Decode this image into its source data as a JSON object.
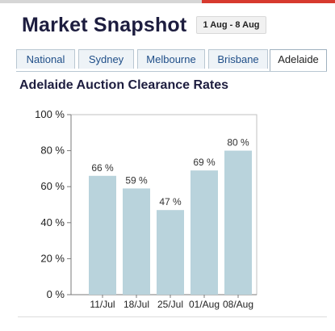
{
  "header": {
    "title": "Market Snapshot",
    "date_range": "1 Aug - 8 Aug"
  },
  "tabs": [
    {
      "label": "National",
      "active": false
    },
    {
      "label": "Sydney",
      "active": false
    },
    {
      "label": "Melbourne",
      "active": false
    },
    {
      "label": "Brisbane",
      "active": false
    },
    {
      "label": "Adelaide",
      "active": true
    }
  ],
  "section_title": "Adelaide Auction Clearance Rates",
  "colors": {
    "bar": "#b9d3dc",
    "accent_red": "#d73a2f",
    "tab_text": "#1f4e88"
  },
  "chart_data": {
    "type": "bar",
    "title": "Adelaide Auction Clearance Rates",
    "categories": [
      "11/Jul",
      "18/Jul",
      "25/Jul",
      "01/Aug",
      "08/Aug"
    ],
    "values": [
      66,
      59,
      47,
      69,
      80
    ],
    "data_labels": [
      "66 %",
      "59 %",
      "47 %",
      "69 %",
      "80 %"
    ],
    "ylim": [
      0,
      100
    ],
    "yticks": [
      0,
      20,
      40,
      60,
      80,
      100
    ],
    "ytick_labels": [
      "0 %",
      "20 %",
      "40 %",
      "60 %",
      "80 %",
      "100 %"
    ],
    "xlabel": "",
    "ylabel": "",
    "grid": false,
    "legend": "none"
  }
}
